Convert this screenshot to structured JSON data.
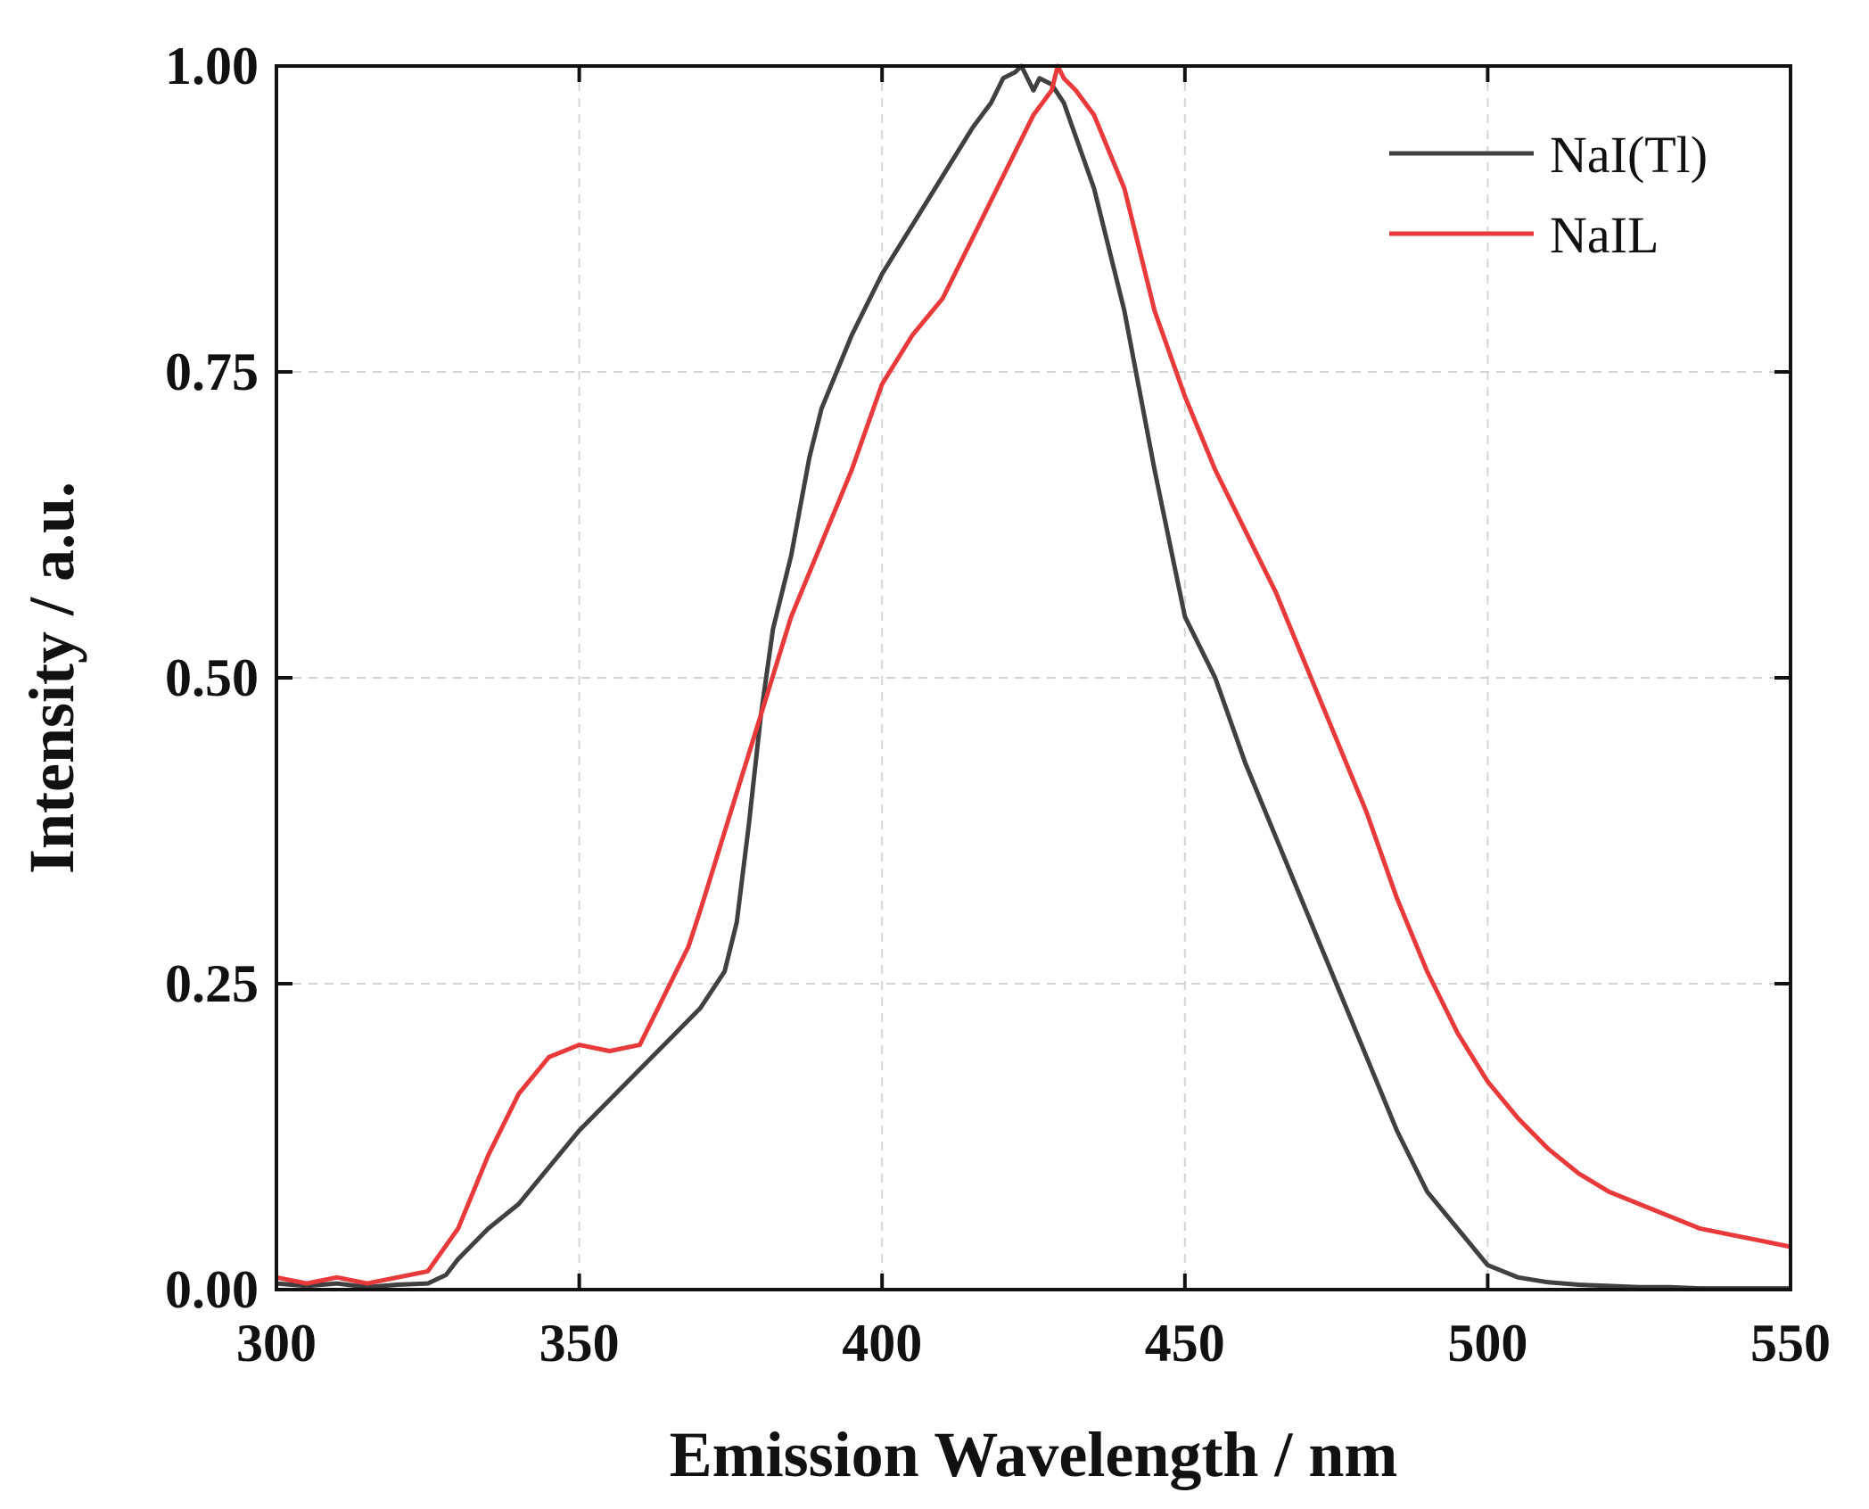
{
  "chart_data": {
    "type": "line",
    "title": "",
    "xlabel": "Emission Wavelength / nm",
    "ylabel": "Intensity / a.u.",
    "xlim": [
      300,
      550
    ],
    "ylim": [
      0,
      1
    ],
    "xticks": [
      300,
      350,
      400,
      450,
      500,
      550
    ],
    "xtick_labels": [
      "300",
      "350",
      "400",
      "450",
      "500",
      "550"
    ],
    "yticks": [
      0,
      0.25,
      0.5,
      0.75,
      1.0
    ],
    "ytick_labels": [
      "0.00",
      "0.25",
      "0.50",
      "0.75",
      "1.00"
    ],
    "grid": true,
    "legend_position": "top-right",
    "series": [
      {
        "name": "NaI(Tl)",
        "color": "#404040",
        "x": [
          300,
          305,
          310,
          315,
          320,
          325,
          328,
          330,
          335,
          340,
          345,
          350,
          355,
          360,
          365,
          370,
          374,
          376,
          378,
          380,
          382,
          385,
          388,
          390,
          395,
          400,
          405,
          410,
          415,
          418,
          420,
          422,
          423,
          424,
          425,
          426,
          428,
          430,
          435,
          440,
          445,
          450,
          455,
          460,
          465,
          470,
          475,
          480,
          485,
          490,
          495,
          500,
          505,
          510,
          515,
          520,
          525,
          530,
          535,
          540,
          545,
          550
        ],
        "y": [
          0.005,
          0.003,
          0.005,
          0.002,
          0.004,
          0.005,
          0.012,
          0.025,
          0.05,
          0.07,
          0.1,
          0.13,
          0.155,
          0.18,
          0.205,
          0.23,
          0.26,
          0.3,
          0.38,
          0.47,
          0.54,
          0.6,
          0.68,
          0.72,
          0.78,
          0.83,
          0.87,
          0.91,
          0.95,
          0.97,
          0.99,
          0.995,
          1.0,
          0.99,
          0.98,
          0.99,
          0.985,
          0.97,
          0.9,
          0.8,
          0.67,
          0.55,
          0.5,
          0.43,
          0.37,
          0.31,
          0.25,
          0.19,
          0.13,
          0.08,
          0.05,
          0.02,
          0.01,
          0.006,
          0.004,
          0.003,
          0.002,
          0.002,
          0.001,
          0.001,
          0.001,
          0.001
        ]
      },
      {
        "name": "NaIL",
        "color": "#e8393b",
        "x": [
          300,
          305,
          310,
          315,
          320,
          325,
          330,
          335,
          340,
          345,
          350,
          355,
          360,
          362,
          365,
          368,
          370,
          375,
          380,
          385,
          390,
          395,
          400,
          405,
          410,
          415,
          420,
          425,
          428,
          429,
          430,
          432,
          435,
          440,
          445,
          450,
          455,
          460,
          465,
          470,
          475,
          480,
          485,
          490,
          495,
          500,
          505,
          510,
          515,
          520,
          525,
          530,
          535,
          540,
          545,
          550
        ],
        "y": [
          0.01,
          0.005,
          0.01,
          0.005,
          0.01,
          0.015,
          0.05,
          0.11,
          0.16,
          0.19,
          0.2,
          0.195,
          0.2,
          0.22,
          0.25,
          0.28,
          0.31,
          0.39,
          0.47,
          0.55,
          0.61,
          0.67,
          0.74,
          0.78,
          0.81,
          0.86,
          0.91,
          0.96,
          0.98,
          1.0,
          0.99,
          0.98,
          0.96,
          0.9,
          0.8,
          0.73,
          0.67,
          0.62,
          0.57,
          0.51,
          0.45,
          0.39,
          0.32,
          0.26,
          0.21,
          0.17,
          0.14,
          0.115,
          0.095,
          0.08,
          0.07,
          0.06,
          0.05,
          0.045,
          0.04,
          0.035
        ]
      }
    ]
  }
}
